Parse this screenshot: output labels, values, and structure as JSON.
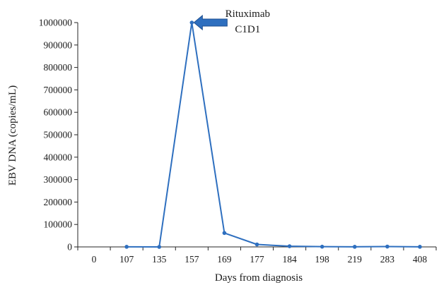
{
  "chart_data": {
    "type": "line",
    "title": "",
    "xlabel": "Days from diagnosis",
    "ylabel": "EBV DNA (copies/mL)",
    "categories": [
      "0",
      "107",
      "135",
      "157",
      "169",
      "177",
      "184",
      "198",
      "219",
      "283",
      "408"
    ],
    "series": [
      {
        "color": "#2e6fbf",
        "values": [
          null,
          500,
          0,
          1000000,
          62000,
          11000,
          3000,
          1000,
          500,
          1500,
          500
        ]
      }
    ],
    "ylim": [
      0,
      1000000
    ],
    "yticks": [
      0,
      100000,
      200000,
      300000,
      400000,
      500000,
      600000,
      700000,
      800000,
      900000,
      1000000
    ],
    "ytick_labels": [
      "0",
      "100000",
      "200000",
      "300000",
      "400000",
      "500000",
      "600000",
      "700000",
      "800000",
      "900000",
      "1000000"
    ],
    "grid": false,
    "legend": "none",
    "annotations": [
      {
        "lines": [
          "Rituximab",
          "C1D1"
        ],
        "points_to_category": "157",
        "arrow_color": "#2e6fbf"
      }
    ]
  }
}
